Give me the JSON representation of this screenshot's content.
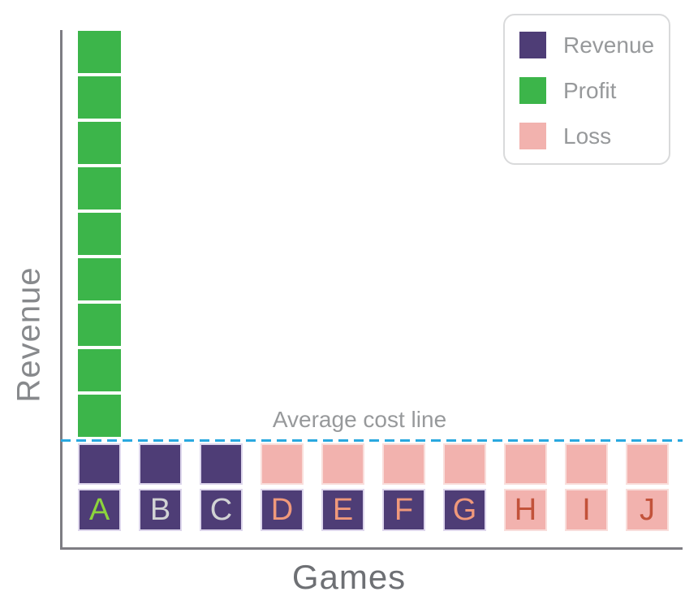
{
  "palette": {
    "revenue_purple": "#4e3d76",
    "profit_green": "#3cb54a",
    "loss_pink": "#f2b2ae",
    "average_line_blue": "#29a8df",
    "axis_gray": "#7e7d83",
    "label_lime": "#8cd43c",
    "label_gray": "#d1d3d4",
    "label_salmon": "#f0997b",
    "label_brick": "#c2523a",
    "text_gray": "#97999b",
    "y_label_gray": "#87898c",
    "x_label_gray": "#6e7074",
    "purple_stroke": "#ddd6ec",
    "pink_stroke": "#f9dedb",
    "legend_border": "#d9dadb"
  },
  "axes": {
    "x_label": "Games",
    "y_label": "Revenue"
  },
  "annotation": {
    "average_line_label": "Average cost line"
  },
  "legend": {
    "position": "top-right",
    "items": [
      {
        "label": "Revenue",
        "color_key": "revenue_purple"
      },
      {
        "label": "Profit",
        "color_key": "profit_green"
      },
      {
        "label": "Loss",
        "color_key": "loss_pink"
      }
    ]
  },
  "chart_data": {
    "type": "bar",
    "subtype": "unit-square stacked columns (waffle-style), no numeric y ticks",
    "title": "",
    "xlabel": "Games",
    "ylabel": "Revenue",
    "legend_position": "top-right",
    "grid": false,
    "annotations": [
      {
        "type": "dashed_horizontal_line",
        "text": "Average cost line",
        "style": "blue dashed, spans full plot width just above the single revenue/loss unit row"
      }
    ],
    "categories": [
      "A",
      "B",
      "C",
      "D",
      "E",
      "F",
      "G",
      "H",
      "I",
      "J"
    ],
    "series": [
      {
        "name": "Profit",
        "units_above_average_cost_line": [
          9,
          0,
          0,
          0,
          0,
          0,
          0,
          0,
          0,
          0
        ]
      },
      {
        "name": "Revenue",
        "units_below_average_cost_line": [
          1,
          1,
          1,
          0,
          0,
          0,
          0,
          0,
          0,
          0
        ]
      },
      {
        "name": "Loss",
        "units_below_average_cost_line": [
          0,
          0,
          0,
          1,
          1,
          1,
          1,
          1,
          1,
          1
        ]
      }
    ],
    "unit_note": "1 square = 1 unit; y-axis has no tick labels",
    "columns": [
      {
        "category": "A",
        "above_line_profit_units": 9,
        "below_line_unit": "revenue",
        "tile_bg": "revenue_purple",
        "tile_text_color": "label_lime"
      },
      {
        "category": "B",
        "above_line_profit_units": 0,
        "below_line_unit": "revenue",
        "tile_bg": "revenue_purple",
        "tile_text_color": "label_gray"
      },
      {
        "category": "C",
        "above_line_profit_units": 0,
        "below_line_unit": "revenue",
        "tile_bg": "revenue_purple",
        "tile_text_color": "label_gray"
      },
      {
        "category": "D",
        "above_line_profit_units": 0,
        "below_line_unit": "loss",
        "tile_bg": "revenue_purple",
        "tile_text_color": "label_salmon"
      },
      {
        "category": "E",
        "above_line_profit_units": 0,
        "below_line_unit": "loss",
        "tile_bg": "revenue_purple",
        "tile_text_color": "label_salmon"
      },
      {
        "category": "F",
        "above_line_profit_units": 0,
        "below_line_unit": "loss",
        "tile_bg": "revenue_purple",
        "tile_text_color": "label_salmon"
      },
      {
        "category": "G",
        "above_line_profit_units": 0,
        "below_line_unit": "loss",
        "tile_bg": "revenue_purple",
        "tile_text_color": "label_salmon"
      },
      {
        "category": "H",
        "above_line_profit_units": 0,
        "below_line_unit": "loss",
        "tile_bg": "loss_pink",
        "tile_text_color": "label_brick"
      },
      {
        "category": "I",
        "above_line_profit_units": 0,
        "below_line_unit": "loss",
        "tile_bg": "loss_pink",
        "tile_text_color": "label_brick"
      },
      {
        "category": "J",
        "above_line_profit_units": 0,
        "below_line_unit": "loss",
        "tile_bg": "loss_pink",
        "tile_text_color": "label_brick"
      }
    ]
  }
}
